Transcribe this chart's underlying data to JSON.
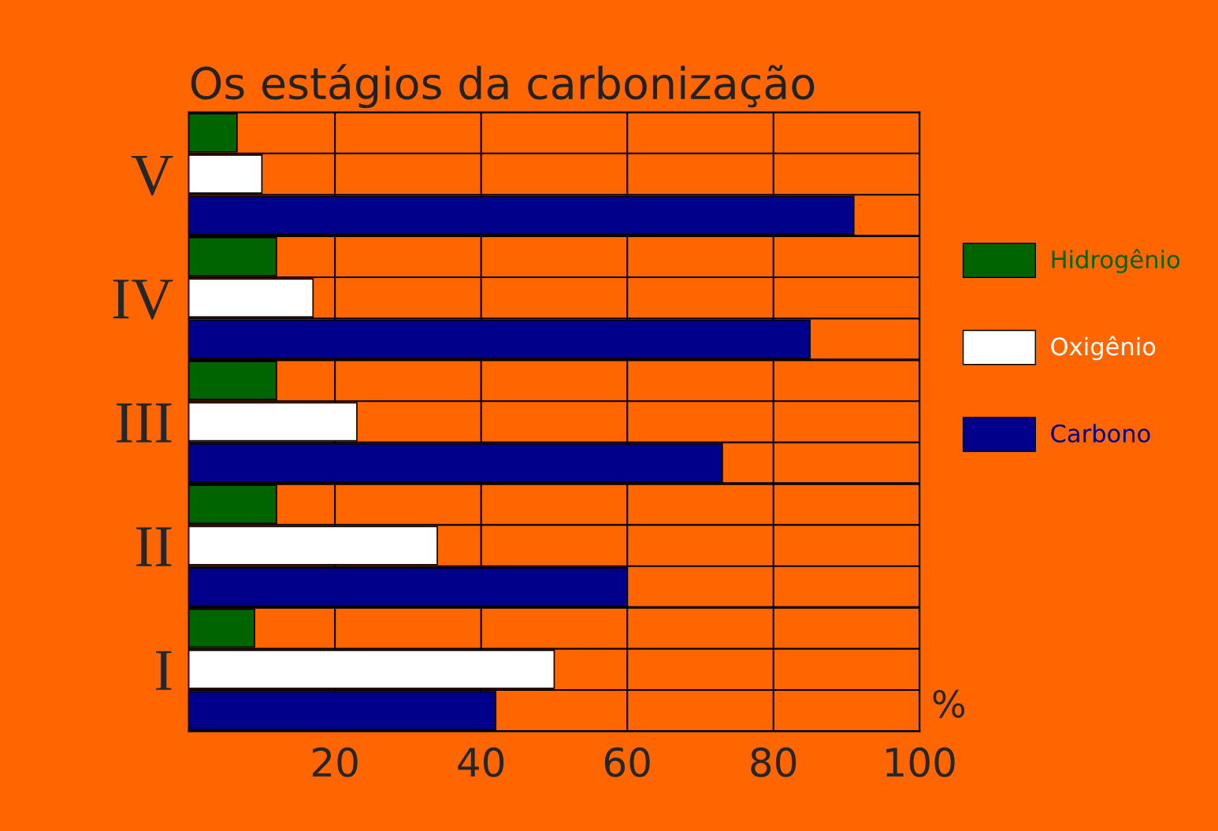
{
  "chart_data": {
    "type": "bar",
    "orientation": "horizontal",
    "title": "Os estágios da carbonização",
    "categories": [
      "V",
      "IV",
      "III",
      "II",
      "I"
    ],
    "series": [
      {
        "name": "Hidrogênio",
        "color": "#006400",
        "values": [
          6.6,
          12,
          12,
          12,
          9
        ]
      },
      {
        "name": "Oxigênio",
        "color": "#ffffff",
        "values": [
          10,
          17,
          23,
          34,
          50
        ]
      },
      {
        "name": "Carbono",
        "color": "#00008b",
        "values": [
          91,
          85,
          73,
          60,
          42
        ]
      }
    ],
    "xlim": [
      0,
      100
    ],
    "xticks": [
      20,
      40,
      60,
      80,
      100
    ],
    "grid": true,
    "legend": "right",
    "annotations": [
      "%"
    ]
  }
}
